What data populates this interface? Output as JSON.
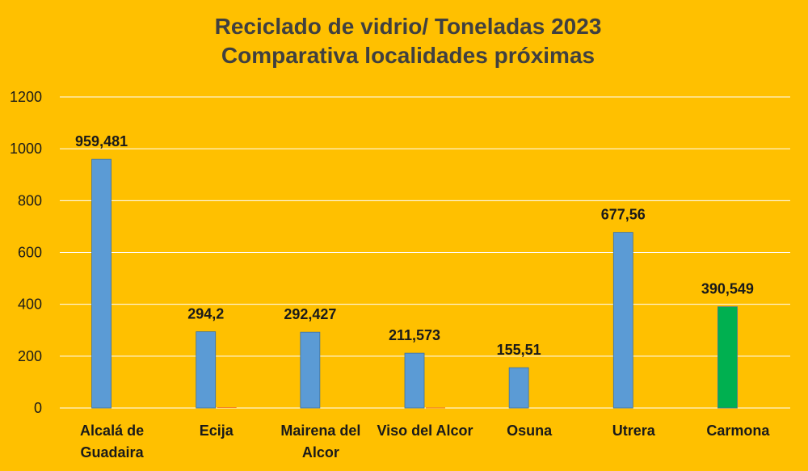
{
  "chart_data": {
    "type": "bar",
    "title": [
      "Reciclado de vidrio/ Toneladas 2023",
      "Comparativa localidades próximas"
    ],
    "categories": [
      [
        "Alcalá de",
        "Guadaira"
      ],
      [
        "Ecija"
      ],
      [
        "Mairena del",
        "Alcor"
      ],
      [
        "Viso del Alcor"
      ],
      [
        "Osuna"
      ],
      [
        "Utrera"
      ],
      [
        "Carmona"
      ]
    ],
    "series": [
      {
        "values": [
          959.481,
          294.2,
          292.427,
          211.573,
          155.51,
          677.56,
          390.549
        ],
        "data_labels": [
          "959,481",
          "294,2",
          "292,427",
          "211,573",
          "155,51",
          "677,56",
          "390,549"
        ],
        "colors": [
          "#5B9BD5",
          "#5B9BD5",
          "#5B9BD5",
          "#5B9BD5",
          "#5B9BD5",
          "#5B9BD5",
          "#00B050"
        ]
      },
      {
        "values": [
          0,
          3,
          0,
          2,
          0,
          0,
          0
        ],
        "color": "#ED7D31"
      }
    ],
    "ylim": [
      0,
      1200
    ],
    "yticks": [
      0,
      200,
      400,
      600,
      800,
      1000,
      1200
    ],
    "grid": true,
    "xlabel": "",
    "ylabel": ""
  }
}
